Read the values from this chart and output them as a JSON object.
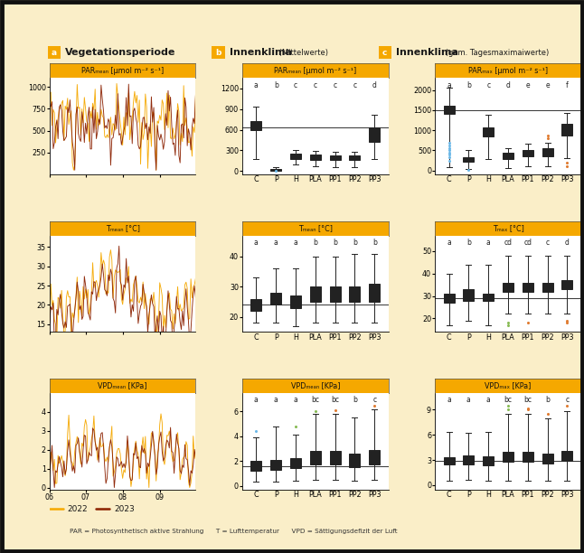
{
  "bg_color": "#faeec8",
  "title_bg_color": "#f5a800",
  "box_categories": [
    "C",
    "P",
    "H",
    "PLA",
    "PP1",
    "PP2",
    "PP3"
  ],
  "box_colors": {
    "C": "#6bb8e8",
    "P": "#6bb8e8",
    "H": "#88bb55",
    "PLA": "#88bb55",
    "PP1": "#e07b30",
    "PP2": "#e07b30",
    "PP3": "#e07b30"
  },
  "sig_labels_b_par": [
    "a",
    "b",
    "c",
    "c",
    "c",
    "c",
    "d"
  ],
  "sig_labels_b_t": [
    "a",
    "a",
    "a",
    "b",
    "b",
    "b",
    "b"
  ],
  "sig_labels_b_vpd": [
    "a",
    "a",
    "a",
    "bc",
    "bc",
    "b",
    "c"
  ],
  "sig_labels_c_par": [
    "a",
    "b",
    "c",
    "d",
    "e",
    "e",
    "f"
  ],
  "sig_labels_c_t": [
    "a",
    "b",
    "a",
    "cd",
    "cd",
    "c",
    "d"
  ],
  "sig_labels_c_vpd": [
    "a",
    "a",
    "a",
    "bc",
    "bc",
    "b",
    "c"
  ],
  "box_data_b_par": {
    "C": {
      "med": 660,
      "q1": 590,
      "q3": 730,
      "whislo": 180,
      "whishi": 940,
      "fliers": []
    },
    "P": {
      "med": 20,
      "q1": 10,
      "q3": 35,
      "whislo": 2,
      "whishi": 60,
      "fliers": [
        5
      ]
    },
    "H": {
      "med": 210,
      "q1": 175,
      "q3": 250,
      "whislo": 90,
      "whishi": 310,
      "fliers": []
    },
    "PLA": {
      "med": 200,
      "q1": 165,
      "q3": 240,
      "whislo": 70,
      "whishi": 290,
      "fliers": []
    },
    "PP1": {
      "med": 185,
      "q1": 155,
      "q3": 225,
      "whislo": 60,
      "whishi": 275,
      "fliers": []
    },
    "PP2": {
      "med": 185,
      "q1": 155,
      "q3": 225,
      "whislo": 60,
      "whishi": 275,
      "fliers": []
    },
    "PP3": {
      "med": 545,
      "q1": 420,
      "q3": 630,
      "whislo": 170,
      "whishi": 820,
      "fliers": []
    }
  },
  "box_data_b_t": {
    "C": {
      "med": 24,
      "q1": 22,
      "q3": 26,
      "whislo": 18,
      "whishi": 33,
      "fliers": []
    },
    "P": {
      "med": 26,
      "q1": 24,
      "q3": 28,
      "whislo": 18,
      "whishi": 36,
      "fliers": []
    },
    "H": {
      "med": 25,
      "q1": 23,
      "q3": 27,
      "whislo": 17,
      "whishi": 36,
      "fliers": []
    },
    "PLA": {
      "med": 27,
      "q1": 25,
      "q3": 30,
      "whislo": 18,
      "whishi": 40,
      "fliers": []
    },
    "PP1": {
      "med": 27,
      "q1": 25,
      "q3": 30,
      "whislo": 18,
      "whishi": 40,
      "fliers": []
    },
    "PP2": {
      "med": 27,
      "q1": 25,
      "q3": 30,
      "whislo": 18,
      "whishi": 41,
      "fliers": []
    },
    "PP3": {
      "med": 28,
      "q1": 25,
      "q3": 31,
      "whislo": 18,
      "whishi": 41,
      "fliers": []
    }
  },
  "box_data_b_vpd": {
    "C": {
      "med": 1.6,
      "q1": 1.2,
      "q3": 2.0,
      "whislo": 0.3,
      "whishi": 3.9,
      "fliers": [
        4.4
      ]
    },
    "P": {
      "med": 1.8,
      "q1": 1.3,
      "q3": 2.1,
      "whislo": 0.3,
      "whishi": 4.8,
      "fliers": []
    },
    "H": {
      "med": 1.8,
      "q1": 1.4,
      "q3": 2.2,
      "whislo": 0.4,
      "whishi": 4.1,
      "fliers": [
        4.8
      ]
    },
    "PLA": {
      "med": 2.2,
      "q1": 1.7,
      "q3": 2.8,
      "whislo": 0.5,
      "whishi": 5.8,
      "fliers": [
        6.0
      ]
    },
    "PP1": {
      "med": 2.2,
      "q1": 1.7,
      "q3": 2.8,
      "whislo": 0.5,
      "whishi": 5.8,
      "fliers": [
        6.1
      ]
    },
    "PP2": {
      "med": 2.0,
      "q1": 1.5,
      "q3": 2.6,
      "whislo": 0.4,
      "whishi": 5.5,
      "fliers": []
    },
    "PP3": {
      "med": 2.3,
      "q1": 1.7,
      "q3": 2.9,
      "whislo": 0.5,
      "whishi": 6.2,
      "fliers": [
        6.5
      ]
    }
  },
  "box_data_c_par": {
    "C": {
      "med": 1490,
      "q1": 1400,
      "q3": 1600,
      "whislo": 80,
      "whishi": 2050,
      "fliers": [
        250,
        330,
        390,
        450,
        510,
        560,
        620,
        680
      ]
    },
    "P": {
      "med": 265,
      "q1": 210,
      "q3": 330,
      "whislo": 40,
      "whishi": 510,
      "fliers": [
        22
      ]
    },
    "H": {
      "med": 960,
      "q1": 840,
      "q3": 1070,
      "whislo": 290,
      "whishi": 1380,
      "fliers": []
    },
    "PLA": {
      "med": 355,
      "q1": 280,
      "q3": 440,
      "whislo": 70,
      "whishi": 560,
      "fliers": []
    },
    "PP1": {
      "med": 430,
      "q1": 345,
      "q3": 520,
      "whislo": 95,
      "whishi": 670,
      "fliers": []
    },
    "PP2": {
      "med": 450,
      "q1": 350,
      "q3": 545,
      "whislo": 95,
      "whishi": 680,
      "fliers": [
        800,
        880
      ]
    },
    "PP3": {
      "med": 1020,
      "q1": 870,
      "q3": 1160,
      "whislo": 300,
      "whishi": 1440,
      "fliers": [
        100,
        190
      ]
    }
  },
  "box_data_c_t": {
    "C": {
      "med": 29,
      "q1": 27,
      "q3": 31,
      "whislo": 17,
      "whishi": 40,
      "fliers": []
    },
    "P": {
      "med": 30,
      "q1": 28,
      "q3": 33,
      "whislo": 19,
      "whishi": 44,
      "fliers": []
    },
    "H": {
      "med": 29,
      "q1": 28,
      "q3": 31,
      "whislo": 17,
      "whishi": 44,
      "fliers": []
    },
    "PLA": {
      "med": 34,
      "q1": 32,
      "q3": 36,
      "whislo": 22,
      "whishi": 48,
      "fliers": [
        17,
        18
      ]
    },
    "PP1": {
      "med": 34,
      "q1": 32,
      "q3": 36,
      "whislo": 22,
      "whishi": 48,
      "fliers": [
        18
      ]
    },
    "PP2": {
      "med": 34,
      "q1": 32,
      "q3": 36,
      "whislo": 22,
      "whishi": 48,
      "fliers": []
    },
    "PP3": {
      "med": 35,
      "q1": 33,
      "q3": 37,
      "whislo": 22,
      "whishi": 48,
      "fliers": [
        18,
        19
      ]
    }
  },
  "box_data_c_vpd": {
    "C": {
      "med": 2.9,
      "q1": 2.5,
      "q3": 3.3,
      "whislo": 0.5,
      "whishi": 6.4,
      "fliers": []
    },
    "P": {
      "med": 3.0,
      "q1": 2.5,
      "q3": 3.5,
      "whislo": 0.6,
      "whishi": 6.2,
      "fliers": []
    },
    "H": {
      "med": 2.9,
      "q1": 2.4,
      "q3": 3.4,
      "whislo": 0.5,
      "whishi": 6.3,
      "fliers": []
    },
    "PLA": {
      "med": 3.4,
      "q1": 2.8,
      "q3": 4.0,
      "whislo": 0.5,
      "whishi": 8.5,
      "fliers": [
        9.0,
        9.5
      ]
    },
    "PP1": {
      "med": 3.4,
      "q1": 2.8,
      "q3": 4.0,
      "whislo": 0.5,
      "whishi": 8.5,
      "fliers": [
        9.0,
        9.2
      ]
    },
    "PP2": {
      "med": 3.2,
      "q1": 2.6,
      "q3": 3.8,
      "whislo": 0.5,
      "whishi": 8.0,
      "fliers": [
        8.5
      ]
    },
    "PP3": {
      "med": 3.5,
      "q1": 2.9,
      "q3": 4.1,
      "whislo": 0.5,
      "whishi": 8.8,
      "fliers": [
        9.5
      ]
    }
  },
  "line_color_2022": "#f5a800",
  "line_color_2023": "#8b2000",
  "ylim_a_par": [
    0,
    1100
  ],
  "ylim_a_t": [
    13,
    38
  ],
  "ylim_a_vpd": [
    -0.1,
    5.0
  ],
  "yticks_a_par": [
    250,
    500,
    750,
    1000
  ],
  "yticks_a_t": [
    15,
    20,
    25,
    30,
    35
  ],
  "yticks_a_vpd": [
    0,
    1,
    2,
    3,
    4
  ],
  "ylim_b_par": [
    -50,
    1350
  ],
  "ylim_b_t": [
    15,
    47
  ],
  "ylim_b_vpd": [
    -0.3,
    7.5
  ],
  "yticks_b_par": [
    0,
    300,
    600,
    900,
    1200
  ],
  "yticks_b_t": [
    20,
    30,
    40
  ],
  "yticks_b_vpd": [
    0,
    2,
    4,
    6
  ],
  "ylim_c_par": [
    -100,
    2300
  ],
  "ylim_c_t": [
    14,
    57
  ],
  "ylim_c_vpd": [
    -0.5,
    11
  ],
  "yticks_c_par": [
    0,
    500,
    1000,
    1500,
    2000
  ],
  "yticks_c_t": [
    20,
    30,
    40,
    50
  ],
  "yticks_c_vpd": [
    0,
    3,
    6,
    9
  ],
  "hline_b_par": 635,
  "hline_c_par": 1490,
  "hline_b_t": 24,
  "hline_c_t": 29,
  "hline_b_vpd": 1.6,
  "hline_c_vpd": 2.9,
  "footer_text": "PAR = Photosynthetisch aktive Strahlung      T = Lufttemperatur      VPD = Sättigungsdefizit der Luft"
}
